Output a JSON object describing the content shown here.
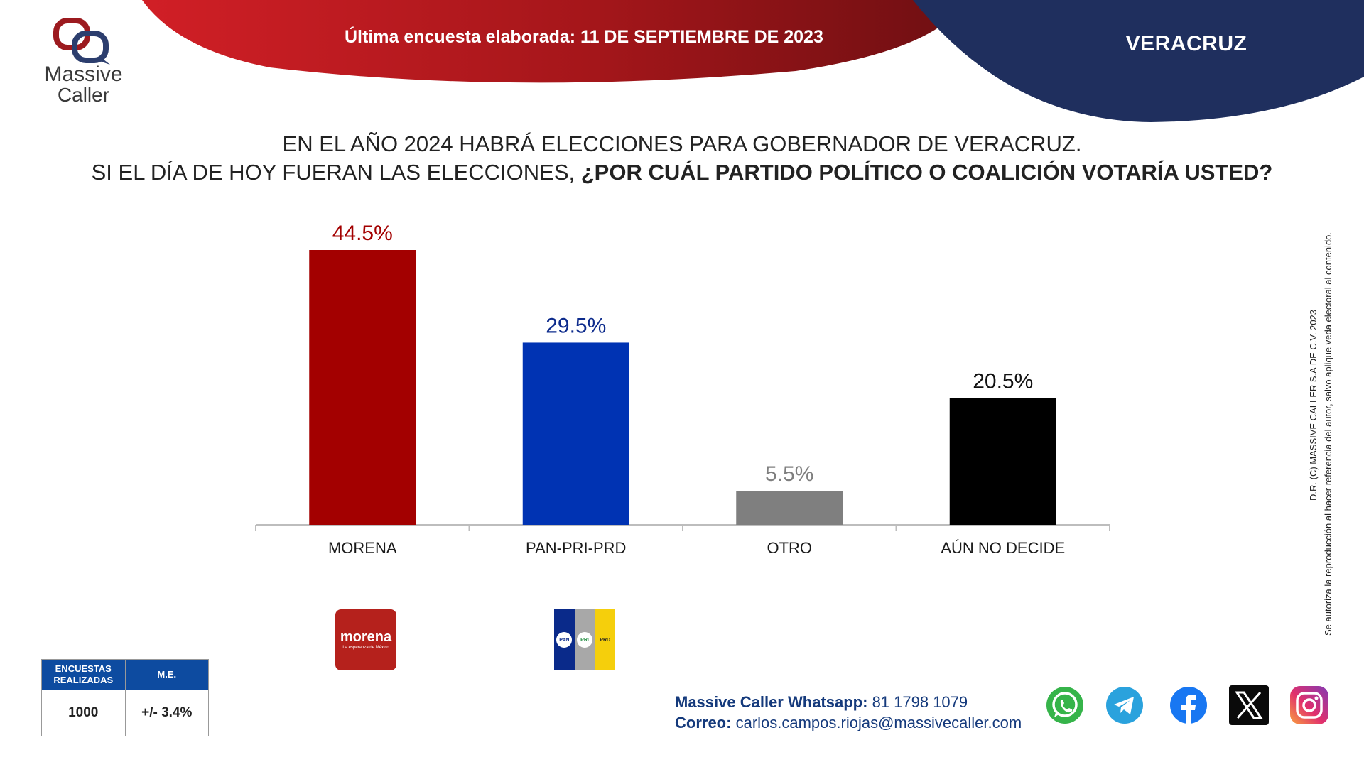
{
  "header": {
    "survey_date": "Última encuesta elaborada: 11 DE SEPTIEMBRE DE 2023",
    "state": "VERACRUZ",
    "colors": {
      "red": "#a4161a",
      "navy": "#1f2f5e"
    }
  },
  "logo": {
    "line1": "Massive",
    "line2": "Caller",
    "icon": "speech-bubble-logo-icon"
  },
  "question": {
    "line1": "EN EL AÑO 2024 HABRÁ ELECCIONES PARA GOBERNADOR DE VERACRUZ.",
    "line2_plain": "SI EL DÍA DE HOY FUERAN LAS ELECCIONES, ",
    "line2_bold": "¿POR CUÁL PARTIDO POLÍTICO O COALICIÓN VOTARÍA USTED?"
  },
  "chart_data": {
    "type": "bar",
    "title": "",
    "xlabel": "",
    "ylabel": "",
    "categories": [
      "MORENA",
      "PAN-PRI-PRD",
      "OTRO",
      "AÚN NO DECIDE"
    ],
    "values": [
      44.5,
      29.5,
      5.5,
      20.5
    ],
    "value_labels": [
      "44.5%",
      "29.5%",
      "5.5%",
      "20.5%"
    ],
    "colors": [
      "#a30000",
      "#0033b3",
      "#7f7f7f",
      "#000000"
    ],
    "label_colors": [
      "#a30000",
      "#0d2b8c",
      "#7f7f7f",
      "#111111"
    ],
    "ylim": [
      0,
      44.5
    ],
    "grid": false,
    "legend": "none"
  },
  "party_logos": {
    "morena": {
      "name": "morena",
      "tagline": "La esperanza de México",
      "color": "#b5211c"
    },
    "coalition": {
      "parts": [
        "PAN",
        "PRI",
        "PRD"
      ],
      "colors": [
        "#0a2a8a",
        "#a8a8a8",
        "#f5cf0c"
      ]
    }
  },
  "stats": {
    "col1_header": "ENCUESTAS REALIZADAS",
    "col2_header": "M.E.",
    "col1_value": "1000",
    "col2_value": "+/- 3.4%"
  },
  "contact": {
    "whatsapp_label": "Massive Caller Whatsapp:",
    "whatsapp_value": "81 1798 1079",
    "email_label": "Correo:",
    "email_value": "carlos.campos.riojas@massivecaller.com"
  },
  "social": [
    "whatsapp-icon",
    "telegram-icon",
    "facebook-icon",
    "x-icon",
    "instagram-icon"
  ],
  "copyright": {
    "line1": "D.R. (C) MASSIVE CALLER S.A DE C.V. 2023",
    "line2": "Se autoriza la reproducción al hacer referencia del autor, salvo aplique veda electoral al contenido."
  }
}
